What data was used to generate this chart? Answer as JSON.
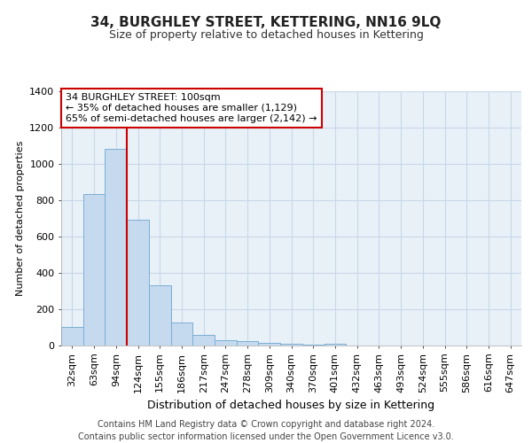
{
  "title": "34, BURGHLEY STREET, KETTERING, NN16 9LQ",
  "subtitle": "Size of property relative to detached houses in Kettering",
  "xlabel": "Distribution of detached houses by size in Kettering",
  "ylabel": "Number of detached properties",
  "footer_line1": "Contains HM Land Registry data © Crown copyright and database right 2024.",
  "footer_line2": "Contains public sector information licensed under the Open Government Licence v3.0.",
  "categories": [
    "32sqm",
    "63sqm",
    "94sqm",
    "124sqm",
    "155sqm",
    "186sqm",
    "217sqm",
    "247sqm",
    "278sqm",
    "309sqm",
    "340sqm",
    "370sqm",
    "401sqm",
    "432sqm",
    "463sqm",
    "493sqm",
    "524sqm",
    "555sqm",
    "586sqm",
    "616sqm",
    "647sqm"
  ],
  "values": [
    100,
    835,
    1080,
    693,
    330,
    125,
    58,
    30,
    22,
    15,
    8,
    5,
    10,
    0,
    0,
    0,
    0,
    0,
    0,
    0,
    0
  ],
  "bar_color": "#c5d9ef",
  "bar_edge_color": "#7bafd4",
  "property_line_color": "#cc0000",
  "annotation_text": "34 BURGHLEY STREET: 100sqm\n← 35% of detached houses are smaller (1,129)\n65% of semi-detached houses are larger (2,142) →",
  "annotation_box_color": "#ffffff",
  "annotation_box_edge_color": "#cc0000",
  "ylim": [
    0,
    1400
  ],
  "yticks": [
    0,
    200,
    400,
    600,
    800,
    1000,
    1200,
    1400
  ],
  "grid_color": "#c8d8e8",
  "background_color": "#e8f0f8",
  "title_fontsize": 11,
  "subtitle_fontsize": 9,
  "ylabel_fontsize": 8,
  "xlabel_fontsize": 9,
  "tick_fontsize": 8,
  "footer_fontsize": 7
}
